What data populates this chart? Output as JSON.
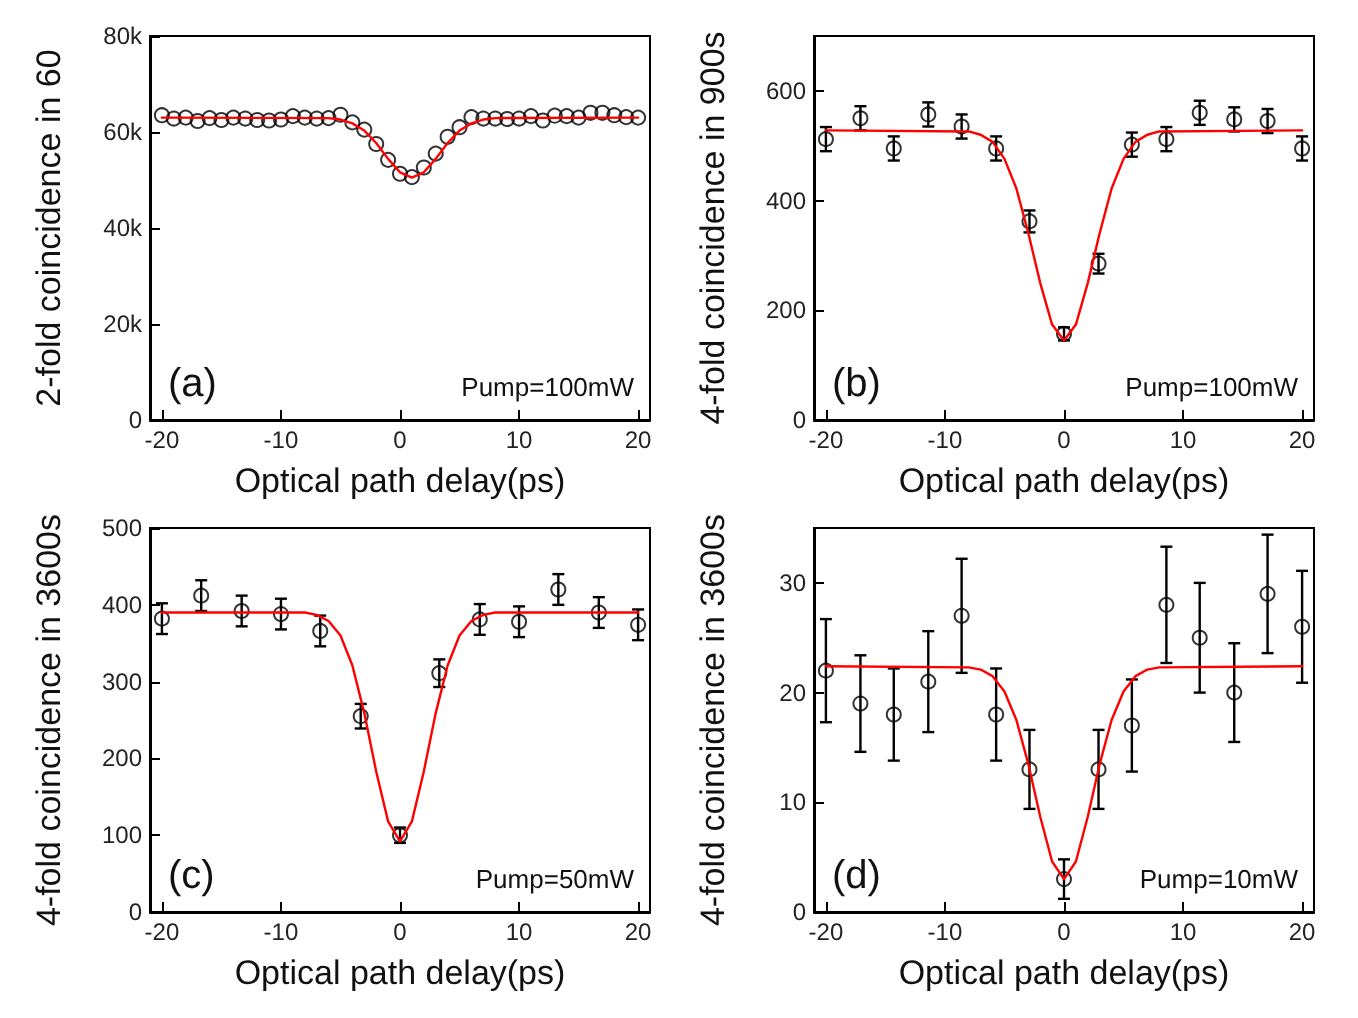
{
  "chart_data": [
    {
      "type": "scatter",
      "xlabel": "Optical path delay(ps)",
      "ylabel": "2-fold coincidence in 60",
      "annotations": [
        "(a)",
        "Pump=100mW"
      ],
      "xlim": [
        -21,
        21
      ],
      "xticks": [
        -20,
        -10,
        0,
        10,
        20
      ],
      "ylim": [
        0,
        80000
      ],
      "yticks": [
        {
          "value": 0,
          "label": "0"
        },
        {
          "value": 20000,
          "label": "20k"
        },
        {
          "value": 40000,
          "label": "40k"
        },
        {
          "value": 60000,
          "label": "60k"
        },
        {
          "value": 80000,
          "label": "80k"
        }
      ],
      "grid": false,
      "series": [
        {
          "marker": "circle",
          "color": "#000000",
          "x": [
            -20,
            -19,
            -18,
            -17,
            -16,
            -15,
            -14,
            -13,
            -12,
            -11,
            -10,
            -9,
            -8,
            -7,
            -6,
            -5,
            -4,
            -3,
            -2,
            -1,
            0,
            1,
            2,
            3,
            4,
            5,
            6,
            7,
            8,
            9,
            10,
            11,
            12,
            13,
            14,
            15,
            16,
            17,
            18,
            19,
            20
          ],
          "values": [
            63500,
            62800,
            63000,
            62300,
            62900,
            62500,
            63000,
            62800,
            62500,
            62400,
            62600,
            63300,
            63000,
            62800,
            62900,
            63600,
            62000,
            60500,
            57500,
            54200,
            51300,
            50600,
            52600,
            55500,
            59000,
            61000,
            63100,
            62800,
            62800,
            62700,
            62800,
            63300,
            62400,
            63400,
            63300,
            63000,
            64000,
            64000,
            63500,
            63100,
            63000
          ]
        },
        {
          "type": "line",
          "marker": "none",
          "line_style": "solid",
          "color": "#ff0000",
          "x": [
            -20,
            -6,
            -5,
            -4,
            -3,
            -2,
            -1,
            0,
            1,
            2,
            3,
            4,
            5,
            6,
            7,
            8,
            20
          ],
          "values": [
            63000,
            62900,
            62600,
            61800,
            60300,
            57700,
            54400,
            51600,
            50500,
            51600,
            54400,
            57700,
            60300,
            61800,
            62600,
            62900,
            63000
          ]
        }
      ]
    },
    {
      "type": "scatter",
      "xlabel": "Optical path delay(ps)",
      "ylabel": "4-fold coincidence in 900s",
      "annotations": [
        "(b)",
        "Pump=100mW"
      ],
      "xlim": [
        -21,
        21
      ],
      "xticks": [
        -20,
        -10,
        0,
        10,
        20
      ],
      "ylim": [
        0,
        700
      ],
      "yticks": [
        0,
        200,
        400,
        600
      ],
      "grid": false,
      "series": [
        {
          "marker": "circle",
          "color": "#000000",
          "x": [
            -20,
            -17.1,
            -14.3,
            -11.4,
            -8.6,
            -5.7,
            -2.9,
            0,
            2.9,
            5.7,
            8.6,
            11.4,
            14.3,
            17.1,
            20
          ],
          "values": [
            512,
            550,
            495,
            557,
            535,
            495,
            362,
            157,
            285,
            502,
            512,
            560,
            548,
            545,
            495
          ],
          "errors": [
            22,
            22,
            22,
            22,
            22,
            22,
            20,
            12,
            18,
            22,
            22,
            22,
            22,
            22,
            22
          ]
        },
        {
          "type": "line",
          "marker": "none",
          "line_style": "solid",
          "color": "#ff0000",
          "x": [
            -20,
            -8,
            -7,
            -6,
            -5,
            -4,
            -3,
            -2,
            -1,
            0,
            1,
            2,
            3,
            4,
            5,
            6,
            7,
            8,
            20
          ],
          "values": [
            528,
            526,
            520,
            507,
            476,
            422,
            341,
            250,
            174,
            145,
            174,
            250,
            341,
            422,
            476,
            507,
            520,
            526,
            528
          ]
        }
      ]
    },
    {
      "type": "scatter",
      "xlabel": "Optical path delay(ps)",
      "ylabel": "4-fold coincidence in 3600s",
      "annotations": [
        "(c)",
        "Pump=50mW"
      ],
      "xlim": [
        -21,
        21
      ],
      "xticks": [
        -20,
        -10,
        0,
        10,
        20
      ],
      "ylim": [
        0,
        500
      ],
      "yticks": [
        0,
        100,
        200,
        300,
        400,
        500
      ],
      "grid": false,
      "series": [
        {
          "marker": "circle",
          "color": "#000000",
          "x": [
            -20,
            -16.7,
            -13.3,
            -10,
            -6.7,
            -3.3,
            0,
            3.3,
            6.7,
            10,
            13.3,
            16.7,
            20
          ],
          "values": [
            382,
            412,
            392,
            388,
            366,
            255,
            100,
            311,
            381,
            378,
            420,
            390,
            374
          ],
          "errors": [
            20,
            20,
            20,
            20,
            20,
            16,
            10,
            18,
            20,
            20,
            20,
            20,
            20
          ]
        },
        {
          "type": "line",
          "marker": "none",
          "line_style": "solid",
          "color": "#ff0000",
          "x": [
            -20,
            -8,
            -7,
            -6,
            -5,
            -4,
            -3,
            -2,
            -1,
            0,
            1,
            2,
            3,
            4,
            5,
            6,
            7,
            8,
            20
          ],
          "values": [
            390,
            390,
            387,
            379,
            360,
            321,
            259,
            183,
            118,
            92,
            118,
            183,
            259,
            321,
            360,
            379,
            387,
            390,
            390
          ]
        }
      ]
    },
    {
      "type": "scatter",
      "xlabel": "Optical path delay(ps)",
      "ylabel": "4-fold coincidence in 3600s",
      "annotations": [
        "(d)",
        "Pump=10mW"
      ],
      "xlim": [
        -21,
        21
      ],
      "xticks": [
        -20,
        -10,
        0,
        10,
        20
      ],
      "ylim": [
        0,
        35
      ],
      "yticks": [
        0,
        10,
        20,
        30
      ],
      "grid": false,
      "series": [
        {
          "marker": "circle",
          "color": "#000000",
          "x": [
            -20,
            -17.1,
            -14.3,
            -11.4,
            -8.6,
            -5.7,
            -2.9,
            0,
            2.9,
            5.7,
            8.6,
            11.4,
            14.3,
            17.1,
            20
          ],
          "values": [
            22,
            19,
            18,
            21,
            27,
            18,
            13,
            3,
            13,
            17,
            28,
            25,
            20,
            29,
            26
          ],
          "errors": [
            4.7,
            4.4,
            4.2,
            4.6,
            5.2,
            4.2,
            3.6,
            1.8,
            3.6,
            4.2,
            5.3,
            5,
            4.5,
            5.4,
            5.1
          ]
        },
        {
          "type": "line",
          "marker": "none",
          "line_style": "solid",
          "color": "#ff0000",
          "x": [
            -20,
            -8,
            -7,
            -6,
            -5,
            -4,
            -3,
            -2,
            -1,
            0,
            1,
            2,
            3,
            4,
            5,
            6,
            7,
            8,
            20
          ],
          "values": [
            22.4,
            22.3,
            22.1,
            21.5,
            20.1,
            17.5,
            13.5,
            8.7,
            4.6,
            3,
            4.6,
            8.7,
            13.5,
            17.5,
            20.1,
            21.5,
            22.1,
            22.3,
            22.4
          ]
        }
      ]
    }
  ]
}
